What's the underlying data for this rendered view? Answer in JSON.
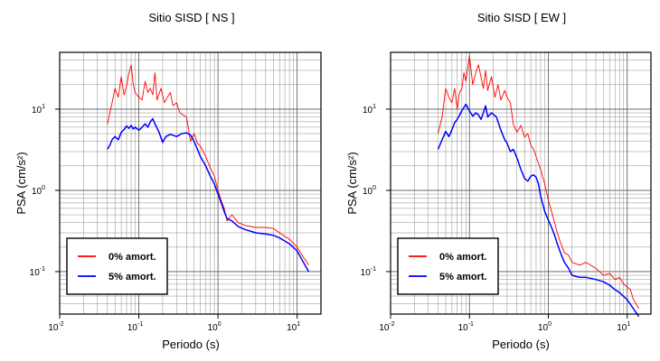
{
  "chart_data": [
    {
      "type": "line",
      "title": "Sitio SISD [ NS ]",
      "xlabel": "Periodo (s)",
      "ylabel": "PSA (cm/s²)",
      "xscale": "log",
      "yscale": "log",
      "xlim": [
        0.01,
        20
      ],
      "ylim": [
        0.03,
        50
      ],
      "grid": true,
      "legend_position": "bottom-left",
      "x_ticks": [
        {
          "value": 0.01,
          "base": "10",
          "exp": "-2"
        },
        {
          "value": 0.1,
          "base": "10",
          "exp": "-1"
        },
        {
          "value": 1,
          "base": "10",
          "exp": "0"
        },
        {
          "value": 10,
          "base": "10",
          "exp": "1"
        }
      ],
      "y_ticks": [
        {
          "value": 0.1,
          "base": "10",
          "exp": "-1"
        },
        {
          "value": 1,
          "base": "10",
          "exp": "0"
        },
        {
          "value": 10,
          "base": "10",
          "exp": "1"
        }
      ],
      "series": [
        {
          "name": "0% amort.",
          "color": "#ff0000",
          "stroke_width": 0.9,
          "points": [
            [
              0.04,
              6.5
            ],
            [
              0.043,
              9
            ],
            [
              0.046,
              12
            ],
            [
              0.05,
              18
            ],
            [
              0.055,
              14
            ],
            [
              0.06,
              25
            ],
            [
              0.065,
              15
            ],
            [
              0.07,
              19
            ],
            [
              0.075,
              28
            ],
            [
              0.08,
              35
            ],
            [
              0.085,
              20
            ],
            [
              0.09,
              16
            ],
            [
              0.1,
              14
            ],
            [
              0.11,
              13
            ],
            [
              0.12,
              22
            ],
            [
              0.13,
              16
            ],
            [
              0.14,
              18
            ],
            [
              0.15,
              15
            ],
            [
              0.16,
              28
            ],
            [
              0.17,
              13
            ],
            [
              0.19,
              18
            ],
            [
              0.21,
              12
            ],
            [
              0.23,
              14
            ],
            [
              0.25,
              16
            ],
            [
              0.27,
              11
            ],
            [
              0.3,
              12
            ],
            [
              0.33,
              9
            ],
            [
              0.36,
              8.5
            ],
            [
              0.4,
              8
            ],
            [
              0.45,
              4
            ],
            [
              0.5,
              5
            ],
            [
              0.55,
              3.8
            ],
            [
              0.6,
              3.5
            ],
            [
              0.7,
              2.6
            ],
            [
              0.8,
              1.9
            ],
            [
              0.9,
              1.5
            ],
            [
              1.0,
              1.0
            ],
            [
              1.1,
              0.75
            ],
            [
              1.2,
              0.6
            ],
            [
              1.3,
              0.42
            ],
            [
              1.5,
              0.5
            ],
            [
              1.8,
              0.4
            ],
            [
              2.2,
              0.37
            ],
            [
              3.0,
              0.35
            ],
            [
              4.0,
              0.35
            ],
            [
              5.0,
              0.34
            ],
            [
              6.0,
              0.3
            ],
            [
              8.0,
              0.25
            ],
            [
              10.0,
              0.2
            ],
            [
              12.0,
              0.15
            ],
            [
              14.0,
              0.12
            ]
          ]
        },
        {
          "name": "5% amort.",
          "color": "#0000ff",
          "stroke_width": 1.5,
          "points": [
            [
              0.04,
              3.2
            ],
            [
              0.043,
              3.6
            ],
            [
              0.046,
              4.2
            ],
            [
              0.05,
              4.6
            ],
            [
              0.055,
              4.2
            ],
            [
              0.06,
              5.2
            ],
            [
              0.065,
              5.6
            ],
            [
              0.07,
              6.2
            ],
            [
              0.075,
              5.8
            ],
            [
              0.08,
              6.3
            ],
            [
              0.085,
              5.7
            ],
            [
              0.09,
              6.0
            ],
            [
              0.1,
              5.5
            ],
            [
              0.11,
              6.0
            ],
            [
              0.12,
              6.6
            ],
            [
              0.13,
              6.0
            ],
            [
              0.14,
              7.0
            ],
            [
              0.15,
              7.6
            ],
            [
              0.16,
              6.6
            ],
            [
              0.18,
              5.2
            ],
            [
              0.2,
              3.9
            ],
            [
              0.22,
              4.6
            ],
            [
              0.25,
              4.9
            ],
            [
              0.3,
              4.6
            ],
            [
              0.35,
              5.0
            ],
            [
              0.4,
              5.1
            ],
            [
              0.45,
              4.8
            ],
            [
              0.5,
              4.0
            ],
            [
              0.55,
              3.2
            ],
            [
              0.6,
              2.6
            ],
            [
              0.7,
              2.0
            ],
            [
              0.8,
              1.5
            ],
            [
              0.9,
              1.2
            ],
            [
              1.0,
              0.9
            ],
            [
              1.1,
              0.7
            ],
            [
              1.2,
              0.55
            ],
            [
              1.3,
              0.45
            ],
            [
              1.5,
              0.42
            ],
            [
              1.8,
              0.36
            ],
            [
              2.2,
              0.33
            ],
            [
              3.0,
              0.3
            ],
            [
              4.0,
              0.29
            ],
            [
              5.0,
              0.28
            ],
            [
              6.0,
              0.26
            ],
            [
              8.0,
              0.22
            ],
            [
              10.0,
              0.18
            ],
            [
              12.0,
              0.13
            ],
            [
              14.0,
              0.1
            ]
          ]
        }
      ]
    },
    {
      "type": "line",
      "title": "Sitio SISD [ EW ]",
      "xlabel": "Periodo (s)",
      "ylabel": "PSA (cm/s²)",
      "xscale": "log",
      "yscale": "log",
      "xlim": [
        0.01,
        20
      ],
      "ylim": [
        0.03,
        50
      ],
      "grid": true,
      "legend_position": "bottom-left",
      "x_ticks": [
        {
          "value": 0.01,
          "base": "10",
          "exp": "-2"
        },
        {
          "value": 0.1,
          "base": "10",
          "exp": "-1"
        },
        {
          "value": 1,
          "base": "10",
          "exp": "0"
        },
        {
          "value": 10,
          "base": "10",
          "exp": "1"
        }
      ],
      "y_ticks": [
        {
          "value": 0.1,
          "base": "10",
          "exp": "-1"
        },
        {
          "value": 1,
          "base": "10",
          "exp": "0"
        },
        {
          "value": 10,
          "base": "10",
          "exp": "1"
        }
      ],
      "series": [
        {
          "name": "0% amort.",
          "color": "#ff0000",
          "stroke_width": 0.9,
          "points": [
            [
              0.04,
              5.0
            ],
            [
              0.045,
              8
            ],
            [
              0.05,
              18
            ],
            [
              0.055,
              14
            ],
            [
              0.06,
              12
            ],
            [
              0.065,
              18
            ],
            [
              0.07,
              10
            ],
            [
              0.075,
              16
            ],
            [
              0.08,
              18
            ],
            [
              0.085,
              28
            ],
            [
              0.09,
              22
            ],
            [
              0.1,
              45
            ],
            [
              0.11,
              20
            ],
            [
              0.12,
              28
            ],
            [
              0.13,
              35
            ],
            [
              0.14,
              25
            ],
            [
              0.15,
              18
            ],
            [
              0.16,
              30
            ],
            [
              0.17,
              17
            ],
            [
              0.19,
              25
            ],
            [
              0.21,
              14
            ],
            [
              0.23,
              20
            ],
            [
              0.25,
              13
            ],
            [
              0.28,
              17
            ],
            [
              0.3,
              14
            ],
            [
              0.33,
              12
            ],
            [
              0.36,
              6.5
            ],
            [
              0.4,
              5.2
            ],
            [
              0.45,
              6.3
            ],
            [
              0.5,
              4.5
            ],
            [
              0.55,
              5.0
            ],
            [
              0.6,
              3.6
            ],
            [
              0.65,
              3.2
            ],
            [
              0.7,
              2.6
            ],
            [
              0.8,
              1.8
            ],
            [
              0.9,
              1.2
            ],
            [
              1.0,
              0.75
            ],
            [
              1.1,
              0.55
            ],
            [
              1.2,
              0.4
            ],
            [
              1.3,
              0.3
            ],
            [
              1.4,
              0.24
            ],
            [
              1.5,
              0.2
            ],
            [
              1.6,
              0.17
            ],
            [
              1.8,
              0.16
            ],
            [
              2.0,
              0.13
            ],
            [
              2.5,
              0.12
            ],
            [
              3.0,
              0.13
            ],
            [
              4.0,
              0.11
            ],
            [
              5.0,
              0.09
            ],
            [
              6.0,
              0.095
            ],
            [
              7.0,
              0.08
            ],
            [
              8.0,
              0.085
            ],
            [
              9.0,
              0.07
            ],
            [
              10.0,
              0.065
            ],
            [
              11.0,
              0.06
            ],
            [
              12.0,
              0.045
            ],
            [
              13.0,
              0.04
            ],
            [
              14.0,
              0.035
            ]
          ]
        },
        {
          "name": "5% amort.",
          "color": "#0000ff",
          "stroke_width": 1.5,
          "points": [
            [
              0.04,
              3.2
            ],
            [
              0.045,
              4.2
            ],
            [
              0.05,
              5.3
            ],
            [
              0.055,
              4.6
            ],
            [
              0.06,
              5.6
            ],
            [
              0.065,
              6.8
            ],
            [
              0.07,
              7.5
            ],
            [
              0.08,
              9.5
            ],
            [
              0.09,
              11.5
            ],
            [
              0.1,
              9.5
            ],
            [
              0.11,
              8.2
            ],
            [
              0.12,
              9.0
            ],
            [
              0.13,
              8.5
            ],
            [
              0.14,
              7.5
            ],
            [
              0.15,
              9.0
            ],
            [
              0.16,
              11
            ],
            [
              0.17,
              8.0
            ],
            [
              0.19,
              9.0
            ],
            [
              0.22,
              8.0
            ],
            [
              0.25,
              5.5
            ],
            [
              0.28,
              4.2
            ],
            [
              0.3,
              3.8
            ],
            [
              0.33,
              3.0
            ],
            [
              0.36,
              3.2
            ],
            [
              0.4,
              2.5
            ],
            [
              0.45,
              1.8
            ],
            [
              0.5,
              1.4
            ],
            [
              0.55,
              1.3
            ],
            [
              0.6,
              1.5
            ],
            [
              0.65,
              1.55
            ],
            [
              0.7,
              1.45
            ],
            [
              0.75,
              1.2
            ],
            [
              0.8,
              0.85
            ],
            [
              0.9,
              0.55
            ],
            [
              1.0,
              0.43
            ],
            [
              1.1,
              0.35
            ],
            [
              1.2,
              0.28
            ],
            [
              1.3,
              0.22
            ],
            [
              1.4,
              0.18
            ],
            [
              1.5,
              0.15
            ],
            [
              1.6,
              0.13
            ],
            [
              1.8,
              0.11
            ],
            [
              2.0,
              0.09
            ],
            [
              2.5,
              0.085
            ],
            [
              3.0,
              0.085
            ],
            [
              4.0,
              0.08
            ],
            [
              5.0,
              0.075
            ],
            [
              6.0,
              0.068
            ],
            [
              7.0,
              0.06
            ],
            [
              8.0,
              0.055
            ],
            [
              10.0,
              0.045
            ],
            [
              12.0,
              0.035
            ],
            [
              14.0,
              0.028
            ]
          ]
        }
      ]
    }
  ]
}
